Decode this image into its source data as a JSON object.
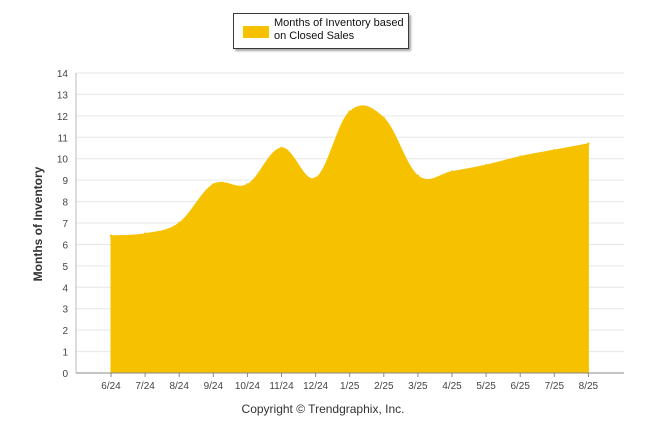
{
  "chart_data": {
    "type": "area",
    "categories": [
      "6/24",
      "7/24",
      "8/24",
      "9/24",
      "10/24",
      "11/24",
      "12/24",
      "1/25",
      "2/25",
      "3/25",
      "4/25",
      "5/25",
      "6/25",
      "7/25",
      "8/25"
    ],
    "series": [
      {
        "name": "Months of Inventory based on Closed Sales",
        "values": [
          6.4,
          6.5,
          7.0,
          8.8,
          8.8,
          10.5,
          9.1,
          12.2,
          11.9,
          9.2,
          9.4,
          9.7,
          10.1,
          10.4,
          10.7
        ]
      }
    ],
    "title": "",
    "xlabel": "",
    "ylabel": "Months of Inventory",
    "ylim": [
      0,
      14
    ],
    "yticks": [
      0,
      1,
      2,
      3,
      4,
      5,
      6,
      7,
      8,
      9,
      10,
      11,
      12,
      13,
      14
    ],
    "grid": true,
    "legend": "top-center",
    "fill_color": "#F6C200"
  },
  "footer": {
    "copyright": "Copyright © Trendgraphix, Inc."
  }
}
